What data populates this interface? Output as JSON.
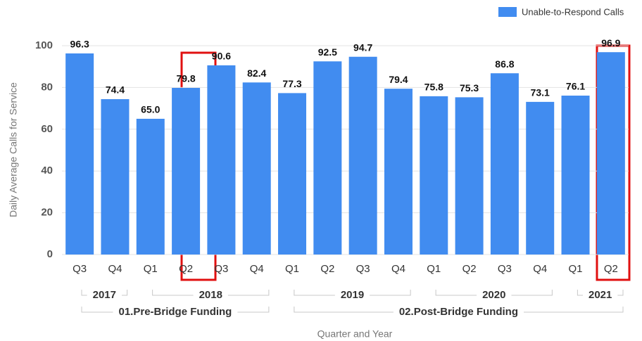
{
  "chart_data": {
    "type": "bar",
    "x_label": "Quarter and Year",
    "y_label": "Daily Average Calls for Service",
    "categories": [
      "Q3",
      "Q4",
      "Q1",
      "Q2",
      "Q3",
      "Q4",
      "Q1",
      "Q2",
      "Q3",
      "Q4",
      "Q1",
      "Q2",
      "Q3",
      "Q4",
      "Q1",
      "Q2"
    ],
    "years": [
      "2017",
      "2017",
      "2018",
      "2018",
      "2018",
      "2018",
      "2019",
      "2019",
      "2019",
      "2019",
      "2020",
      "2020",
      "2020",
      "2020",
      "2021",
      "2021"
    ],
    "periods": [
      "01.Pre-Bridge Funding",
      "01.Pre-Bridge Funding",
      "01.Pre-Bridge Funding",
      "01.Pre-Bridge Funding",
      "01.Pre-Bridge Funding",
      "01.Pre-Bridge Funding",
      "02.Post-Bridge Funding",
      "02.Post-Bridge Funding",
      "02.Post-Bridge Funding",
      "02.Post-Bridge Funding",
      "02.Post-Bridge Funding",
      "02.Post-Bridge Funding",
      "02.Post-Bridge Funding",
      "02.Post-Bridge Funding",
      "02.Post-Bridge Funding",
      "02.Post-Bridge Funding"
    ],
    "series": [
      {
        "name": "Unable-to-Respond Calls",
        "color": "#418cf0",
        "values": [
          96.3,
          74.4,
          65.0,
          79.8,
          90.6,
          82.4,
          77.3,
          92.5,
          94.7,
          79.4,
          75.8,
          75.3,
          86.8,
          73.1,
          76.1,
          96.9
        ],
        "value_labels": [
          "96.3",
          "74.4",
          "65.0",
          "79.8",
          "90.6",
          "82.4",
          "77.3",
          "92.5",
          "94.7",
          "79.4",
          "75.8",
          "75.3",
          "86.8",
          "73.1",
          "76.1",
          "96.9"
        ]
      }
    ],
    "ylim": [
      0,
      100
    ],
    "yticks": [
      0,
      20,
      40,
      60,
      80,
      100
    ],
    "grid": true,
    "legend": "top-right"
  }
}
